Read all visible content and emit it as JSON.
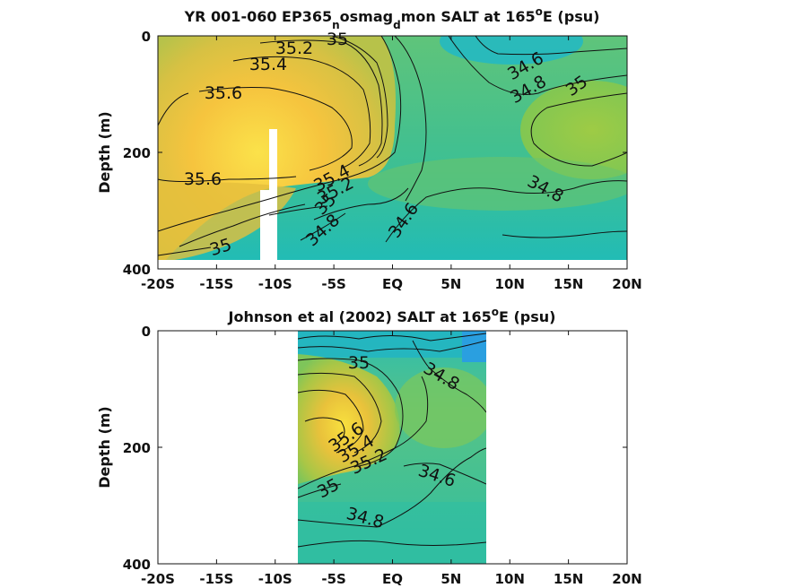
{
  "chart_data": [
    {
      "type": "heatmap",
      "title": "YR 001-060 EP365_nosmag_dmon SALT at 165°E (psu)",
      "title_parts": {
        "a": "YR 001-060 EP365",
        "sub1": "n",
        "b": "osmag",
        "sub2": "d",
        "c": "mon SALT at 165",
        "sup": "o",
        "d": "E (psu)"
      },
      "xlabel": "",
      "ylabel": "Depth (m)",
      "xlim": [
        -20,
        20
      ],
      "ylim": [
        400,
        0
      ],
      "x_ticks": [
        -20,
        -15,
        -10,
        -5,
        0,
        5,
        10,
        15,
        20
      ],
      "x_tick_labels": [
        "-20S",
        "-15S",
        "-10S",
        "-5S",
        "EQ",
        "5N",
        "10N",
        "15N",
        "20N"
      ],
      "y_ticks": [
        0,
        200,
        400
      ],
      "y_tick_labels": [
        "0",
        "200",
        "400"
      ],
      "colorscale": {
        "low": "#19b5c9",
        "mid": "#8cc64a",
        "high": "#f9c33a",
        "min": 34.4,
        "max": 35.8
      },
      "contour_labels": [
        {
          "text": "35",
          "x": -5.0,
          "y": 5
        },
        {
          "text": "35.2",
          "x": -8.5,
          "y": 20
        },
        {
          "text": "35.4",
          "x": -12.0,
          "y": 50
        },
        {
          "text": "35.6",
          "x": -14.7,
          "y": 98
        },
        {
          "text": "35.6",
          "x": -15.5,
          "y": 245
        },
        {
          "text": "35",
          "x": -17.0,
          "y": 358
        },
        {
          "text": "35.4",
          "x": -5.0,
          "y": 255
        },
        {
          "text": "35.2",
          "x": -5.0,
          "y": 275
        },
        {
          "text": "35",
          "x": -5.6,
          "y": 295
        },
        {
          "text": "34.8",
          "x": -6.1,
          "y": 330
        },
        {
          "text": "34.6",
          "x": 1.1,
          "y": 320
        },
        {
          "text": "34.6",
          "x": 10.9,
          "y": 55
        },
        {
          "text": "34.8",
          "x": 10.9,
          "y": 95
        },
        {
          "text": "35",
          "x": 15.1,
          "y": 88
        },
        {
          "text": "34.8",
          "x": 12.9,
          "y": 263
        }
      ]
    },
    {
      "type": "heatmap",
      "title": "Johnson et al (2002) SALT at 165°E (psu)",
      "title_parts": {
        "a": "Johnson et al (2002) SALT at 165",
        "sup": "o",
        "b": "E (psu)"
      },
      "xlabel": "",
      "ylabel": "Depth (m)",
      "xlim": [
        -20,
        20
      ],
      "ylim": [
        400,
        0
      ],
      "data_x_range": [
        -8,
        8
      ],
      "x_ticks": [
        -20,
        -15,
        -10,
        -5,
        0,
        5,
        10,
        15,
        20
      ],
      "x_tick_labels": [
        "-20S",
        "-15S",
        "-10S",
        "-5S",
        "EQ",
        "5N",
        "10N",
        "15N",
        "20N"
      ],
      "y_ticks": [
        0,
        200,
        400
      ],
      "y_tick_labels": [
        "0",
        "200",
        "400"
      ],
      "contour_labels": [
        {
          "text": "35",
          "x": -2.8,
          "y": 55
        },
        {
          "text": "34.8",
          "x": 4.2,
          "y": 80
        },
        {
          "text": "35.6",
          "x": -3.8,
          "y": 185
        },
        {
          "text": "35.4",
          "x": -3.3,
          "y": 200
        },
        {
          "text": "35.2",
          "x": -2.0,
          "y": 215
        },
        {
          "text": "35",
          "x": -5.6,
          "y": 268
        },
        {
          "text": "34.6",
          "x": 3.9,
          "y": 245
        },
        {
          "text": "34.8",
          "x": -2.2,
          "y": 320
        }
      ]
    }
  ]
}
